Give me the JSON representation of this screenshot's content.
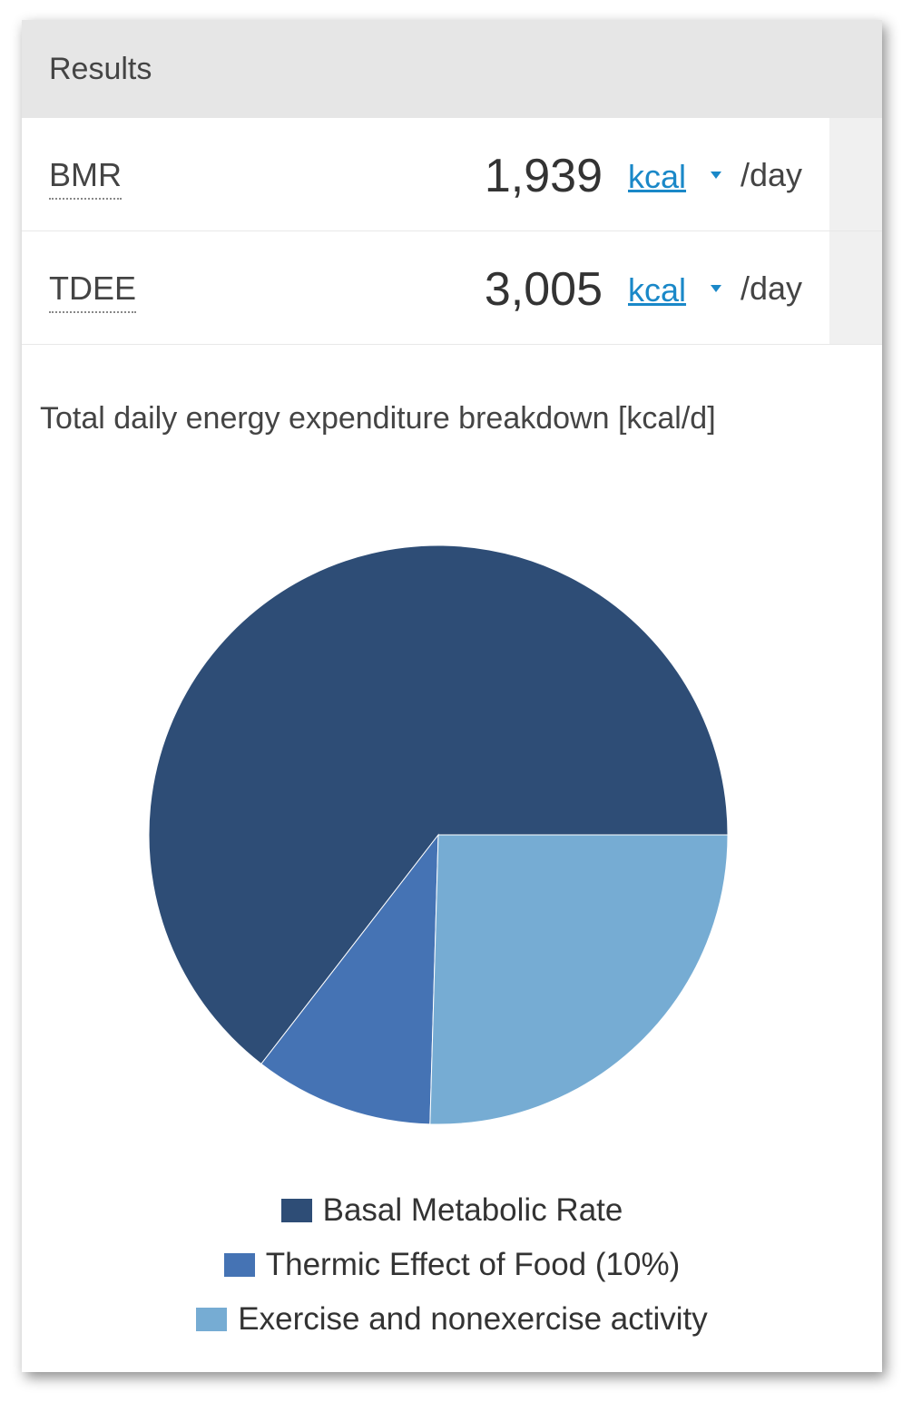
{
  "header": {
    "title": "Results"
  },
  "results": [
    {
      "label": "BMR",
      "value": "1,939",
      "unit": "kcal",
      "per": "/day"
    },
    {
      "label": "TDEE",
      "value": "3,005",
      "unit": "kcal",
      "per": "/day"
    }
  ],
  "chart_data": {
    "type": "pie",
    "title": "Total daily energy expenditure breakdown [kcal/d]",
    "categories": [
      "Basal Metabolic Rate",
      "Thermic Effect of Food (10%)",
      "Exercise and nonexercise activity"
    ],
    "values": [
      1939,
      301,
      765
    ],
    "colors": [
      "#2e4d76",
      "#4573b4",
      "#76acd3"
    ]
  }
}
